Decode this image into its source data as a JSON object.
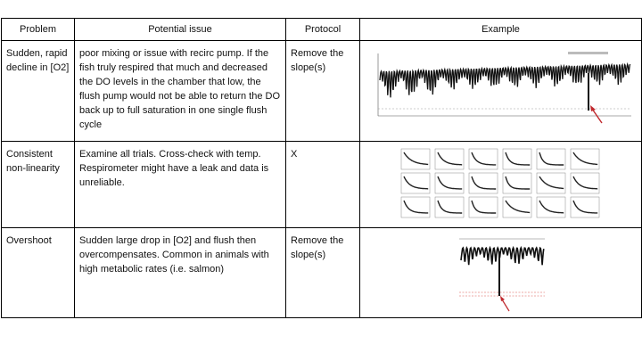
{
  "headers": [
    "Problem",
    "Potential issue",
    "Protocol",
    "Example"
  ],
  "rows": [
    {
      "problem": "Sudden, rapid decline in [O2]",
      "issue": "poor mixing or issue with recirc pump. If the fish truly respired that much and decreased the DO levels in the chamber that low, the flush pump would not be able to return the DO back up to full saturation in one single flush cycle",
      "protocol": "Remove the slope(s)",
      "example": {
        "icon": "oxygen-trace-plot-with-arrow",
        "arrow_color": "#c0282d"
      }
    },
    {
      "problem": "Consistent non-linearity",
      "issue": "Examine all trials. Cross-check with temp. Respirometer might have a leak and data is unreliable.",
      "protocol": "X",
      "example": {
        "icon": "grid-of-trial-decay-plots"
      }
    },
    {
      "problem": "Overshoot",
      "issue": "Sudden large drop in [O2] and flush then overcompensates. Common in animals with high metabolic rates (i.e. salmon)",
      "protocol": "Remove the slope(s)",
      "example": {
        "icon": "overshoot-trace-plot-with-arrow",
        "arrow_color": "#c0282d",
        "threshold_color": "#d9534f"
      }
    }
  ]
}
